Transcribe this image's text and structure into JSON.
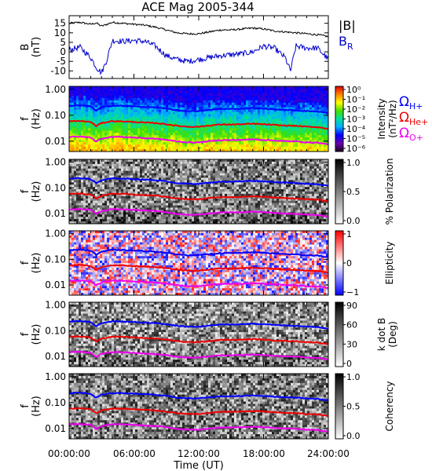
{
  "chart_data": {
    "type": "spectrogram",
    "title": "ACE Mag 2005-344",
    "x_axis": {
      "label": "Time (UT)",
      "tick_labels": [
        "00:00:00",
        "06:00:00",
        "12:00:00",
        "18:00:00",
        "24:00:00"
      ],
      "range_hours": [
        0,
        24
      ]
    },
    "gyro_labels": {
      "h": {
        "main": "Ω",
        "sub": "H+",
        "color": "#0000ff"
      },
      "he": {
        "main": "Ω",
        "sub": "He+",
        "color": "#ee0000"
      },
      "o": {
        "main": "Ω",
        "sub": "O+",
        "color": "#ee00ee"
      }
    },
    "panels": [
      {
        "id": "field",
        "type": "line",
        "ylabel": [
          "B",
          "(nT)"
        ],
        "ylim": [
          -14,
          19
        ],
        "yticks": [
          15,
          10,
          5,
          0,
          -5,
          -10
        ],
        "series": [
          {
            "name": "|B|",
            "color": "#000000",
            "x": [
              0,
              1,
              2,
              2.5,
              3,
              4,
              5,
              6,
              7,
              8,
              9,
              10,
              11,
              12,
              13,
              14,
              15,
              16,
              17,
              18,
              19,
              20,
              21,
              22,
              23,
              24
            ],
            "y": [
              15,
              15.5,
              14.5,
              15.2,
              13.5,
              15.5,
              15,
              14.5,
              14,
              13,
              11.5,
              10,
              9.5,
              9.5,
              10.5,
              11.5,
              11.5,
              12,
              12.5,
              12,
              11,
              10.5,
              10,
              9.5,
              9,
              8
            ]
          },
          {
            "name": "B",
            "sub": "R",
            "color": "#0000cc",
            "x": [
              0,
              1,
              2,
              2.5,
              3,
              3.5,
              4,
              5,
              6,
              7,
              8,
              9,
              10,
              11,
              12,
              13,
              14,
              15,
              16,
              17,
              18,
              19,
              20,
              20.5,
              21,
              22,
              23,
              24
            ],
            "y": [
              1,
              2.5,
              -3,
              -8,
              -11,
              -4,
              6,
              5.5,
              6,
              5.5,
              3,
              -2,
              -4,
              -5,
              -4,
              -3,
              -2,
              -1.5,
              -1,
              0,
              3,
              2,
              -3,
              -10,
              3,
              2,
              2,
              -4
            ]
          }
        ]
      },
      {
        "id": "intensity",
        "type": "heatmap",
        "ylabel": [
          "f",
          "(Hz)"
        ],
        "colorbar": {
          "scale": "rainbow",
          "ticks": [
            "10⁰",
            "10⁻¹",
            "10⁻²",
            "10⁻³",
            "10⁻⁴",
            "10⁻⁵",
            "10⁻⁶"
          ],
          "label": "Intensity",
          "label2": "(nT²/Hz)"
        }
      },
      {
        "id": "polarization",
        "type": "heatmap",
        "ylabel": [
          "f",
          "(Hz)"
        ],
        "colorbar": {
          "scale": "gray",
          "ticks": [
            "1.0",
            "0.5",
            "0.0"
          ],
          "label": "% Polarization"
        }
      },
      {
        "id": "ellipticity",
        "type": "heatmap",
        "ylabel": [
          "f",
          "(Hz)"
        ],
        "colorbar": {
          "scale": "bwr",
          "ticks": [
            "1",
            "0",
            "−1"
          ],
          "label": "Ellipticity"
        }
      },
      {
        "id": "kdotb",
        "type": "heatmap",
        "ylabel": [
          "f",
          "(Hz)"
        ],
        "colorbar": {
          "scale": "gray",
          "ticks": [
            "90",
            "60",
            "30",
            "0"
          ],
          "label": "k dot B",
          "label2": "(Deg)"
        }
      },
      {
        "id": "coherency",
        "type": "heatmap",
        "ylabel": [
          "f",
          "(Hz)"
        ],
        "colorbar": {
          "scale": "gray",
          "ticks": [
            "1.0",
            "0.5",
            "0.0"
          ],
          "label": "Coherency"
        }
      }
    ],
    "frequency_axis": {
      "scale": "log",
      "range_hz": [
        0.004,
        1.3
      ],
      "tick_labels": [
        "1.00",
        "0.10",
        "0.01"
      ],
      "tick_values": [
        1.0,
        0.1,
        0.01
      ]
    },
    "gyrofrequency_lines": {
      "x": [
        0,
        1,
        2,
        2.5,
        3,
        4,
        5,
        6,
        7,
        8,
        9,
        10,
        11,
        12,
        13,
        14,
        15,
        16,
        17,
        18,
        19,
        20,
        21,
        22,
        23,
        24
      ],
      "H+": [
        0.23,
        0.24,
        0.22,
        0.15,
        0.2,
        0.235,
        0.23,
        0.22,
        0.21,
        0.2,
        0.18,
        0.155,
        0.145,
        0.145,
        0.16,
        0.175,
        0.175,
        0.18,
        0.19,
        0.18,
        0.17,
        0.16,
        0.155,
        0.145,
        0.14,
        0.12
      ],
      "He+": [
        0.058,
        0.06,
        0.055,
        0.038,
        0.05,
        0.059,
        0.058,
        0.055,
        0.052,
        0.05,
        0.045,
        0.039,
        0.036,
        0.036,
        0.04,
        0.044,
        0.044,
        0.045,
        0.047,
        0.045,
        0.042,
        0.04,
        0.039,
        0.036,
        0.035,
        0.03
      ],
      "O+": [
        0.0145,
        0.015,
        0.014,
        0.0095,
        0.0125,
        0.0148,
        0.0145,
        0.0138,
        0.013,
        0.0125,
        0.0112,
        0.0098,
        0.009,
        0.009,
        0.01,
        0.011,
        0.011,
        0.0112,
        0.0118,
        0.0112,
        0.0106,
        0.01,
        0.0098,
        0.009,
        0.0088,
        0.0075
      ]
    },
    "colors": {
      "H+": "#0000ff",
      "He+": "#ee0000",
      "O+": "#ee00ee"
    }
  }
}
